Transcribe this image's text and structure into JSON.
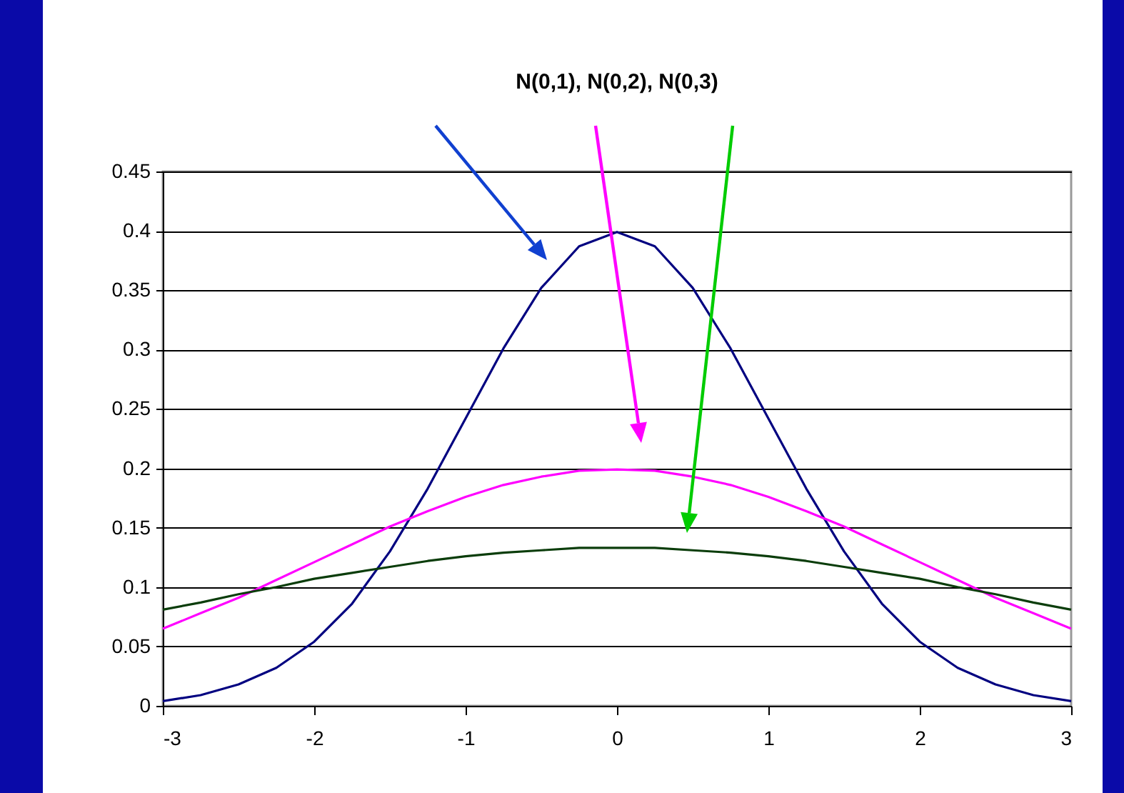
{
  "chart_data": {
    "type": "line",
    "title": "N(0,1), N(0,2), N(0,3)",
    "x": [
      -3,
      -2.75,
      -2.5,
      -2.25,
      -2,
      -1.75,
      -1.5,
      -1.25,
      -1,
      -0.75,
      -0.5,
      -0.25,
      0,
      0.25,
      0.5,
      0.75,
      1,
      1.25,
      1.5,
      1.75,
      2,
      2.25,
      2.5,
      2.75,
      3
    ],
    "series": [
      {
        "color": "#000080",
        "values": [
          0.004,
          0.009,
          0.018,
          0.032,
          0.054,
          0.086,
          0.13,
          0.183,
          0.242,
          0.301,
          0.352,
          0.387,
          0.399,
          0.387,
          0.352,
          0.301,
          0.242,
          0.183,
          0.13,
          0.086,
          0.054,
          0.032,
          0.018,
          0.009,
          0.004
        ]
      },
      {
        "color": "#ff00ff",
        "values": [
          0.065,
          0.078,
          0.091,
          0.106,
          0.121,
          0.136,
          0.151,
          0.164,
          0.176,
          0.186,
          0.193,
          0.198,
          0.199,
          0.198,
          0.193,
          0.186,
          0.176,
          0.164,
          0.151,
          0.136,
          0.121,
          0.106,
          0.091,
          0.078,
          0.065
        ]
      },
      {
        "color": "#0b3d0b",
        "values": [
          0.081,
          0.087,
          0.094,
          0.1,
          0.107,
          0.112,
          0.117,
          0.122,
          0.126,
          0.129,
          0.131,
          0.133,
          0.133,
          0.133,
          0.131,
          0.129,
          0.126,
          0.122,
          0.117,
          0.112,
          0.107,
          0.1,
          0.094,
          0.087,
          0.081
        ]
      }
    ],
    "xlim": [
      -3,
      3
    ],
    "xticks": [
      -3,
      -2,
      -1,
      0,
      1,
      2,
      3
    ],
    "ylim": [
      0,
      0.45
    ],
    "yticks": [
      0,
      0.05,
      0.1,
      0.15,
      0.2,
      0.25,
      0.3,
      0.35,
      0.4,
      0.45
    ],
    "grid": "y",
    "legend": false
  }
}
